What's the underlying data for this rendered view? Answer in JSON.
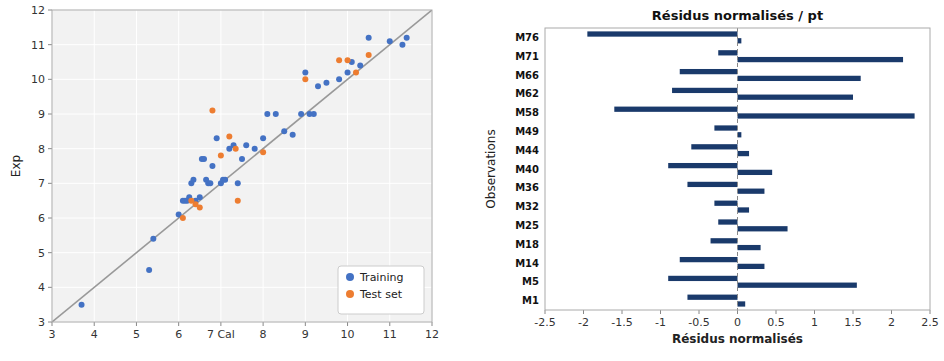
{
  "chart_data": [
    {
      "type": "scatter",
      "ylabel": "Exp",
      "xlim": [
        3,
        12
      ],
      "ylim": [
        3,
        12
      ],
      "xticks": [
        3,
        4,
        5,
        6,
        {
          "value": 7,
          "label": "7 Cal"
        },
        8,
        9,
        10,
        11,
        12
      ],
      "yticks": [
        3,
        4,
        5,
        6,
        7,
        8,
        9,
        10,
        11,
        12
      ],
      "grid": true,
      "legend": "lower right",
      "series": [
        {
          "name": "Training",
          "color": "#4472c4",
          "x": [
            3.7,
            5.3,
            5.4,
            6.0,
            6.1,
            6.15,
            6.2,
            6.25,
            6.3,
            6.35,
            6.4,
            6.5,
            6.55,
            6.6,
            6.65,
            6.7,
            6.75,
            6.8,
            6.9,
            7.0,
            7.05,
            7.1,
            7.2,
            7.3,
            7.4,
            7.5,
            7.6,
            7.8,
            8.0,
            8.1,
            8.3,
            8.5,
            8.7,
            8.9,
            9.0,
            9.1,
            9.2,
            9.3,
            9.5,
            9.8,
            10.0,
            10.1,
            10.3,
            10.5,
            11.0,
            11.3,
            11.4
          ],
          "values": [
            3.5,
            4.5,
            5.4,
            6.1,
            6.5,
            6.5,
            6.5,
            6.6,
            7.0,
            7.1,
            6.5,
            6.6,
            7.7,
            7.7,
            7.1,
            7.0,
            7.0,
            7.5,
            8.3,
            7.0,
            7.1,
            7.1,
            8.0,
            8.1,
            7.0,
            7.7,
            8.1,
            8.0,
            8.3,
            9.0,
            9.0,
            8.5,
            8.4,
            9.0,
            10.2,
            9.0,
            9.0,
            9.8,
            9.9,
            10.0,
            10.2,
            10.5,
            10.4,
            11.2,
            11.1,
            11.0,
            11.2
          ]
        },
        {
          "name": "Test set",
          "color": "#ed7d31",
          "x": [
            6.1,
            6.3,
            6.4,
            6.5,
            6.8,
            7.0,
            7.2,
            7.35,
            7.4,
            8.0,
            9.0,
            9.8,
            10.0,
            10.2,
            10.5
          ],
          "values": [
            6.0,
            6.5,
            6.4,
            6.3,
            9.1,
            7.8,
            8.35,
            8.0,
            6.5,
            7.9,
            10.0,
            10.55,
            10.55,
            10.2,
            10.7
          ]
        }
      ]
    },
    {
      "type": "bar",
      "orientation": "horizontal",
      "title": "Résidus normalisés / pt",
      "xlabel": "Résidus normalisés",
      "ylabel": "Observations",
      "xlim": [
        -2.5,
        2.5
      ],
      "xticks": [
        -2.5,
        -2,
        -1.5,
        -1,
        -0.5,
        0,
        0.5,
        1,
        1.5,
        2,
        2.5
      ],
      "grid": false,
      "categories": [
        "M1",
        "M5",
        "M14",
        "M18",
        "M25",
        "M32",
        "M36",
        "M40",
        "M44",
        "M49",
        "M58",
        "M62",
        "M66",
        "M71",
        "M76"
      ],
      "series": [
        {
          "color": "#1a3a6b",
          "values": [
            -0.65,
            -0.9,
            -0.75,
            -0.35,
            -0.25,
            -0.3,
            -0.65,
            -0.9,
            -0.6,
            -0.3,
            -1.6,
            -0.85,
            -0.75,
            -0.25,
            -1.95
          ]
        },
        {
          "color": "#1a3a6b",
          "values": [
            0.1,
            1.55,
            0.35,
            0.3,
            0.65,
            0.15,
            0.35,
            0.45,
            0.15,
            0.05,
            2.3,
            1.5,
            1.6,
            2.15,
            0.05
          ]
        }
      ]
    }
  ]
}
